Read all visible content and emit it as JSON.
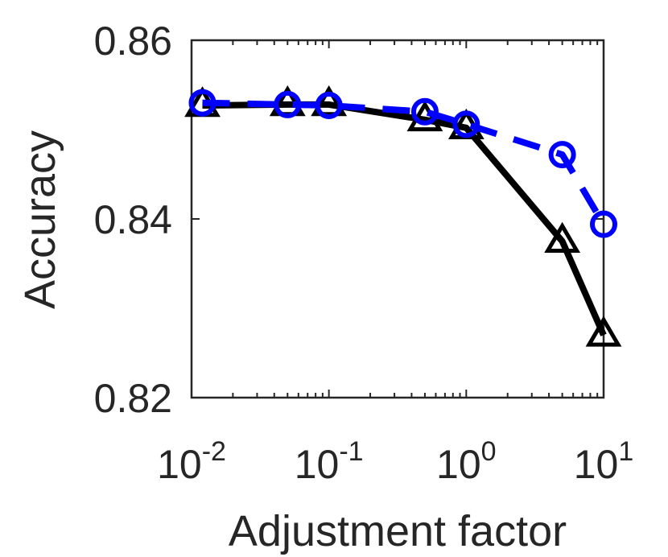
{
  "chart_data": {
    "type": "line",
    "xlabel": "Adjustment factor",
    "ylabel": "Accuracy",
    "x_scale": "log",
    "xlim": [
      0.01,
      10
    ],
    "ylim": [
      0.82,
      0.86
    ],
    "xticks": [
      {
        "value": 0.01,
        "base": "10",
        "exp": "-2"
      },
      {
        "value": 0.1,
        "base": "10",
        "exp": "-1"
      },
      {
        "value": 1,
        "base": "10",
        "exp": "0"
      },
      {
        "value": 10,
        "base": "10",
        "exp": "1"
      }
    ],
    "yticks": [
      {
        "value": 0.82,
        "label": "0.82"
      },
      {
        "value": 0.84,
        "label": "0.84"
      },
      {
        "value": 0.86,
        "label": "0.86"
      }
    ],
    "grid": false,
    "legend": "none",
    "series": [
      {
        "marker": "triangle",
        "line_style": "solid",
        "color": "#000000",
        "x": [
          0.012,
          0.05,
          0.1,
          0.5,
          1,
          5,
          10
        ],
        "y": [
          0.8527,
          0.8528,
          0.8528,
          0.8511,
          0.8502,
          0.8375,
          0.827
        ]
      },
      {
        "marker": "circle",
        "line_style": "dashed",
        "color": "#0000ff",
        "x": [
          0.012,
          0.05,
          0.1,
          0.5,
          1,
          5,
          10
        ],
        "y": [
          0.853,
          0.8528,
          0.8527,
          0.852,
          0.8506,
          0.8472,
          0.8394
        ]
      }
    ]
  }
}
